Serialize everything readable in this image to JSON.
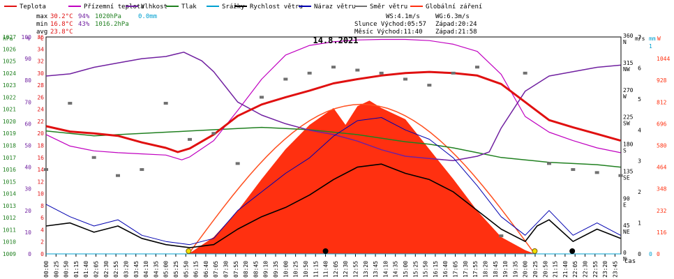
{
  "chart_data": {
    "type": "line",
    "title": "14.8.2021",
    "legend": [
      {
        "name": "Teplota",
        "color": "#e01010"
      },
      {
        "name": "Přízemní teplota",
        "color": "#c000c0"
      },
      {
        "name": "Vlhkost",
        "color": "#7020a0"
      },
      {
        "name": "Tlak",
        "color": "#208020"
      },
      {
        "name": "Srážky",
        "color": "#00a0d0"
      },
      {
        "name": "Rychlost větru",
        "color": "#000000"
      },
      {
        "name": "Náraz větru",
        "color": "#0000b0"
      },
      {
        "name": "Směr větru",
        "color": "#707070"
      },
      {
        "name": "Globální záření",
        "color": "#ff3010"
      }
    ],
    "stats": {
      "max": {
        "label": "max",
        "temp": "30.2°C",
        "hum": "94%",
        "press": "1020hPa",
        "rain": "0.0mm"
      },
      "min": {
        "label": "min",
        "temp": "16.8°C",
        "hum": "43%",
        "press": "1016.2hPa"
      },
      "avg": {
        "label": "avg",
        "temp": "23.8°C"
      }
    },
    "wind_info": {
      "ws": "WS:4.1m/s",
      "wg": "WG:6.3m/s"
    },
    "sun_info": {
      "line1": "Slunce Východ:05:57",
      "line2": "Západ:20:24"
    },
    "moon_info": {
      "line1": "Měsíc Východ:11:40",
      "line2": "Západ:21:58"
    },
    "axes": {
      "hpa": {
        "unit": "hPa",
        "ticks": [
          "1027",
          "1026",
          "1025",
          "1024",
          "1023",
          "1022",
          "1021",
          "1020",
          "1019",
          "1018",
          "1017",
          "1016",
          "1015",
          "1014",
          "1013",
          "1012",
          "1011",
          "1010",
          "1009"
        ],
        "range": [
          1009,
          1027
        ]
      },
      "percent": {
        "unit": "%",
        "ticks": [
          "100",
          "90",
          "80",
          "70",
          "60",
          "50",
          "40",
          "30",
          "20",
          "10",
          "0"
        ],
        "range": [
          0,
          100
        ]
      },
      "celsius": {
        "unit": "°C",
        "ticks": [
          "36",
          "34",
          "32",
          "30",
          "28",
          "26",
          "24",
          "22",
          "20",
          "18",
          "16",
          "14",
          "12",
          "10",
          "8",
          "6",
          "4",
          "2",
          "0"
        ],
        "range": [
          0,
          36
        ]
      },
      "ms": {
        "unit": "m/s",
        "ticks": [
          "7",
          "6",
          "5",
          "4",
          "3",
          "2",
          "1",
          "0"
        ],
        "range": [
          0,
          7
        ]
      },
      "mm": {
        "unit": "mm",
        "ticks": [
          "1",
          "0"
        ],
        "range": [
          0,
          1
        ]
      },
      "direction": {
        "ticks": [
          {
            "deg": "360",
            "dir": "N"
          },
          {
            "deg": "315",
            "dir": "NW"
          },
          {
            "deg": "270",
            "dir": "W"
          },
          {
            "deg": "225",
            "dir": "SW"
          },
          {
            "deg": "180",
            "dir": "S"
          },
          {
            "deg": "135",
            "dir": "SE"
          },
          {
            "deg": "90",
            "dir": "E"
          },
          {
            "deg": "45",
            "dir": "NE"
          },
          {
            "deg": "0",
            "dir": "N"
          }
        ],
        "range": [
          0,
          360
        ]
      },
      "radiation": {
        "unit": "W",
        "ticks": [
          "1044",
          "928",
          "812",
          "696",
          "580",
          "464",
          "348",
          "232",
          "116",
          "0"
        ],
        "range": [
          0,
          1160
        ]
      },
      "time": {
        "unit": "čas",
        "ticks": [
          "00:00",
          "00:25",
          "00:50",
          "01:15",
          "01:40",
          "02:05",
          "02:30",
          "02:55",
          "03:20",
          "03:45",
          "04:10",
          "04:35",
          "05:00",
          "05:25",
          "05:50",
          "06:15",
          "06:40",
          "07:05",
          "07:30",
          "07:55",
          "08:20",
          "08:45",
          "09:10",
          "09:35",
          "10:00",
          "10:25",
          "10:50",
          "11:15",
          "11:40",
          "12:05",
          "12:30",
          "12:55",
          "13:20",
          "13:45",
          "14:10",
          "14:35",
          "15:00",
          "15:25",
          "15:50",
          "16:15",
          "16:40",
          "17:05",
          "17:30",
          "17:55",
          "18:20",
          "18:45",
          "19:10",
          "19:35",
          "20:00",
          "20:25",
          "20:50",
          "21:15",
          "21:40",
          "22:05",
          "22:30",
          "22:55",
          "23:20",
          "23:45"
        ]
      }
    },
    "series": [
      {
        "name": "Teplota",
        "unit": "°C",
        "x": [
          "00:00",
          "01:00",
          "02:00",
          "03:00",
          "04:00",
          "05:00",
          "05:30",
          "06:00",
          "07:00",
          "08:00",
          "09:00",
          "10:00",
          "11:00",
          "12:00",
          "13:00",
          "14:00",
          "15:00",
          "16:00",
          "17:00",
          "18:00",
          "19:00",
          "20:00",
          "21:00",
          "22:00",
          "23:00",
          "23:59"
        ],
        "values": [
          21.2,
          20.3,
          20.0,
          19.6,
          18.5,
          17.6,
          16.9,
          17.5,
          19.8,
          22.9,
          24.8,
          26.0,
          27.1,
          28.3,
          29.0,
          29.6,
          30.0,
          30.2,
          30.0,
          29.6,
          28.2,
          25.2,
          22.2,
          21.0,
          19.9,
          18.8
        ]
      },
      {
        "name": "Přízemní teplota",
        "unit": "°C",
        "x": [
          "00:00",
          "01:00",
          "02:00",
          "03:00",
          "04:00",
          "05:00",
          "05:40",
          "06:00",
          "07:00",
          "08:00",
          "09:00",
          "10:00",
          "11:00",
          "12:00",
          "13:00",
          "14:00",
          "15:00",
          "16:00",
          "17:00",
          "18:00",
          "19:00",
          "20:00",
          "21:00",
          "22:00",
          "23:00",
          "23:59"
        ],
        "values": [
          19.8,
          17.9,
          17.1,
          16.8,
          16.6,
          16.4,
          15.6,
          16.1,
          18.8,
          23.8,
          29.0,
          33.0,
          34.6,
          35.2,
          35.5,
          35.6,
          35.6,
          35.4,
          34.8,
          33.6,
          29.8,
          22.8,
          20.2,
          18.8,
          17.6,
          16.8
        ]
      },
      {
        "name": "Vlhkost",
        "unit": "%",
        "x": [
          "00:00",
          "01:00",
          "02:00",
          "03:00",
          "04:00",
          "05:00",
          "05:45",
          "06:30",
          "07:00",
          "08:00",
          "09:00",
          "10:00",
          "11:00",
          "12:00",
          "13:00",
          "14:00",
          "15:00",
          "16:00",
          "17:00",
          "18:00",
          "18:30",
          "19:00",
          "20:00",
          "21:00",
          "22:00",
          "23:00",
          "23:59"
        ],
        "values": [
          82,
          83,
          86,
          88,
          90,
          91,
          93,
          89,
          84,
          70,
          64,
          60,
          57,
          55,
          52,
          48,
          45,
          44,
          43,
          45,
          47,
          58,
          75,
          82,
          84,
          86,
          87
        ]
      },
      {
        "name": "Tlak",
        "unit": "hPa",
        "x": [
          "00:00",
          "01:00",
          "02:00",
          "03:00",
          "04:00",
          "05:00",
          "06:00",
          "07:00",
          "08:00",
          "09:00",
          "10:00",
          "11:00",
          "12:00",
          "13:00",
          "14:00",
          "15:00",
          "16:00",
          "17:00",
          "18:00",
          "19:00",
          "20:00",
          "21:00",
          "22:00",
          "23:00",
          "23:59"
        ],
        "values": [
          1019.2,
          1019.0,
          1018.8,
          1018.9,
          1019.0,
          1019.1,
          1019.2,
          1019.3,
          1019.4,
          1019.5,
          1019.4,
          1019.3,
          1019.1,
          1018.9,
          1018.6,
          1018.3,
          1018.1,
          1017.8,
          1017.4,
          1017.0,
          1016.8,
          1016.6,
          1016.5,
          1016.4,
          1016.2
        ]
      },
      {
        "name": "Rychlost větru",
        "unit": "m/s",
        "x": [
          "00:00",
          "01:00",
          "02:00",
          "03:00",
          "04:00",
          "05:00",
          "06:00",
          "07:00",
          "08:00",
          "09:00",
          "10:00",
          "11:00",
          "12:00",
          "13:00",
          "14:00",
          "15:00",
          "16:00",
          "17:00",
          "18:00",
          "19:00",
          "20:00",
          "20:30",
          "21:00",
          "22:00",
          "23:00",
          "23:59"
        ],
        "values": [
          0.9,
          1.0,
          0.7,
          0.9,
          0.5,
          0.3,
          0.2,
          0.3,
          0.8,
          1.2,
          1.5,
          1.9,
          2.4,
          2.8,
          2.9,
          2.6,
          2.4,
          2.0,
          1.4,
          0.8,
          0.4,
          0.9,
          1.1,
          0.4,
          0.8,
          0.5
        ]
      },
      {
        "name": "Náraz větru",
        "unit": "m/s",
        "x": [
          "00:00",
          "01:00",
          "02:00",
          "03:00",
          "04:00",
          "05:00",
          "06:00",
          "07:00",
          "08:00",
          "09:00",
          "10:00",
          "11:00",
          "12:00",
          "13:00",
          "14:00",
          "15:00",
          "16:00",
          "17:00",
          "18:00",
          "19:00",
          "20:00",
          "21:00",
          "22:00",
          "23:00",
          "23:59"
        ],
        "values": [
          1.6,
          1.2,
          0.9,
          1.1,
          0.6,
          0.4,
          0.3,
          0.5,
          1.4,
          2.0,
          2.6,
          3.1,
          3.8,
          4.3,
          4.4,
          4.0,
          3.7,
          3.1,
          2.2,
          1.2,
          0.6,
          1.4,
          0.6,
          1.0,
          0.6
        ]
      },
      {
        "name": "Směr větru",
        "unit": "°",
        "x": [
          "00:00",
          "01:00",
          "02:00",
          "03:00",
          "04:00",
          "05:00",
          "06:00",
          "07:00",
          "08:00",
          "09:00",
          "10:00",
          "11:00",
          "12:00",
          "13:00",
          "14:00",
          "15:00",
          "16:00",
          "17:00",
          "18:00",
          "19:00",
          "20:00",
          "21:00",
          "22:00",
          "23:00",
          "23:59"
        ],
        "values": [
          140,
          250,
          160,
          130,
          140,
          250,
          190,
          200,
          150,
          260,
          290,
          300,
          310,
          305,
          300,
          290,
          280,
          300,
          310,
          30,
          300,
          150,
          140,
          135,
          130
        ]
      },
      {
        "name": "Globální záření",
        "unit": "W/m²",
        "x": [
          "05:57",
          "07:00",
          "08:00",
          "09:00",
          "10:00",
          "11:00",
          "12:00",
          "12:30",
          "13:00",
          "13:30",
          "14:00",
          "15:00",
          "16:00",
          "17:00",
          "18:00",
          "19:00",
          "20:00",
          "20:24"
        ],
        "values": [
          0,
          90,
          230,
          400,
          560,
          690,
          780,
          690,
          790,
          820,
          780,
          720,
          560,
          400,
          230,
          90,
          20,
          0
        ]
      },
      {
        "name": "Srážky",
        "unit": "mm",
        "x": [
          "00:00",
          "23:59"
        ],
        "values": [
          0,
          0
        ]
      }
    ]
  }
}
